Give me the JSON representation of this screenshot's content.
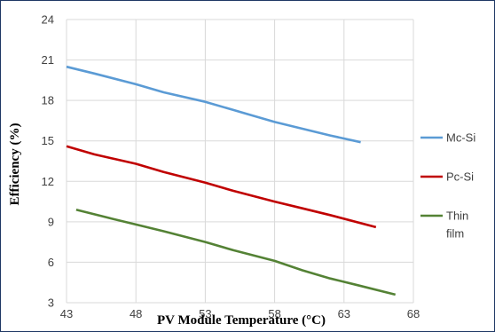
{
  "chart_data": {
    "type": "line",
    "title": "",
    "xlabel": "PV Module Temperature (°C)",
    "ylabel": "Efficiency (%)",
    "xlim": [
      43,
      68
    ],
    "ylim": [
      3,
      24
    ],
    "xticks": [
      43,
      48,
      53,
      58,
      63,
      68
    ],
    "yticks": [
      3,
      6,
      9,
      12,
      15,
      18,
      21,
      24
    ],
    "grid": true,
    "legend_position": "right",
    "series": [
      {
        "name": "Mc-Si",
        "color": "#5b9bd5",
        "points": [
          [
            43,
            20.5
          ],
          [
            45,
            20.0
          ],
          [
            48,
            19.2
          ],
          [
            50,
            18.6
          ],
          [
            53,
            17.9
          ],
          [
            55,
            17.3
          ],
          [
            58,
            16.4
          ],
          [
            60,
            15.9
          ],
          [
            62,
            15.4
          ],
          [
            64.2,
            14.9
          ]
        ]
      },
      {
        "name": "Pc-Si",
        "color": "#c00000",
        "points": [
          [
            43,
            14.6
          ],
          [
            45,
            14.0
          ],
          [
            48,
            13.3
          ],
          [
            50,
            12.7
          ],
          [
            53,
            11.9
          ],
          [
            55,
            11.3
          ],
          [
            58,
            10.5
          ],
          [
            60,
            10.0
          ],
          [
            62,
            9.5
          ],
          [
            65.3,
            8.6
          ]
        ]
      },
      {
        "name": "Thin film",
        "color": "#548235",
        "points": [
          [
            43.7,
            9.9
          ],
          [
            46,
            9.3
          ],
          [
            48,
            8.8
          ],
          [
            50,
            8.3
          ],
          [
            53,
            7.5
          ],
          [
            55,
            6.9
          ],
          [
            58,
            6.1
          ],
          [
            60,
            5.4
          ],
          [
            62,
            4.8
          ],
          [
            64,
            4.3
          ],
          [
            66.7,
            3.6
          ]
        ]
      }
    ]
  }
}
